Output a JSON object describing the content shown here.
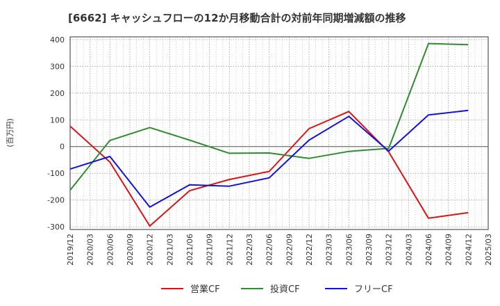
{
  "chart_data": {
    "type": "line",
    "title": "[6662]  キャッシュフローの12か月移動合計の対前年同期増減額の推移",
    "xlabel": "",
    "ylabel": "(百万円)",
    "ylim": [
      -310,
      410
    ],
    "yticks": [
      -300,
      -200,
      -100,
      0,
      100,
      200,
      300,
      400
    ],
    "x_labels": [
      "2019/12",
      "2020/03",
      "2020/06",
      "2020/09",
      "2020/12",
      "2021/03",
      "2021/06",
      "2021/09",
      "2021/12",
      "2022/03",
      "2022/06",
      "2022/09",
      "2022/12",
      "2023/03",
      "2023/06",
      "2023/09",
      "2023/12",
      "2024/03",
      "2024/06",
      "2024/09",
      "2024/12",
      "2025/03"
    ],
    "grid": true,
    "legend_position": "bottom",
    "series": [
      {
        "name": "営業CF",
        "color": "#dd1111",
        "points": [
          {
            "x": "2019/12",
            "y": 76
          },
          {
            "x": "2020/06",
            "y": -58
          },
          {
            "x": "2020/12",
            "y": -297
          },
          {
            "x": "2021/06",
            "y": -165
          },
          {
            "x": "2021/12",
            "y": -123
          },
          {
            "x": "2022/06",
            "y": -93
          },
          {
            "x": "2022/12",
            "y": 67
          },
          {
            "x": "2023/06",
            "y": 131
          },
          {
            "x": "2023/12",
            "y": -20
          },
          {
            "x": "2024/06",
            "y": -268
          },
          {
            "x": "2024/12",
            "y": -247
          }
        ]
      },
      {
        "name": "投資CF",
        "color": "#2e8b2e",
        "points": [
          {
            "x": "2019/12",
            "y": -163
          },
          {
            "x": "2020/06",
            "y": 23
          },
          {
            "x": "2020/12",
            "y": 71
          },
          {
            "x": "2021/06",
            "y": 24
          },
          {
            "x": "2021/12",
            "y": -25
          },
          {
            "x": "2022/06",
            "y": -24
          },
          {
            "x": "2022/12",
            "y": -44
          },
          {
            "x": "2023/06",
            "y": -18
          },
          {
            "x": "2023/12",
            "y": -7
          },
          {
            "x": "2024/06",
            "y": 385
          },
          {
            "x": "2024/12",
            "y": 381
          }
        ]
      },
      {
        "name": "フリーCF",
        "color": "#1111dd",
        "points": [
          {
            "x": "2019/12",
            "y": -84
          },
          {
            "x": "2020/06",
            "y": -37
          },
          {
            "x": "2020/12",
            "y": -226
          },
          {
            "x": "2021/06",
            "y": -143
          },
          {
            "x": "2021/12",
            "y": -148
          },
          {
            "x": "2022/06",
            "y": -117
          },
          {
            "x": "2022/12",
            "y": 24
          },
          {
            "x": "2023/06",
            "y": 113
          },
          {
            "x": "2023/12",
            "y": -17
          },
          {
            "x": "2024/06",
            "y": 118
          },
          {
            "x": "2024/12",
            "y": 135
          }
        ]
      }
    ]
  }
}
